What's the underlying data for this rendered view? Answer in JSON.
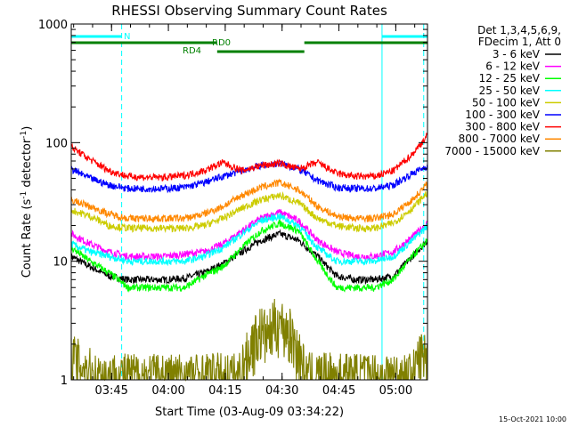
{
  "chart_data": {
    "type": "line",
    "title": "RHESSI Observing Summary Count Rates",
    "xlabel": "Start Time (03-Aug-09 03:34:22)",
    "ylabel_prefix": "Count Rate (s",
    "ylabel_sup1": "-1",
    "ylabel_mid": " detector",
    "ylabel_sup2": "-1",
    "ylabel_suffix": ")",
    "y_scale": "log",
    "ylim": [
      1,
      1000
    ],
    "xlim_minutes": [
      0,
      94
    ],
    "x_ticks": [
      {
        "label": "03:45",
        "minute": 10.63
      },
      {
        "label": "04:00",
        "minute": 25.63
      },
      {
        "label": "04:15",
        "minute": 40.63
      },
      {
        "label": "04:30",
        "minute": 55.63
      },
      {
        "label": "04:45",
        "minute": 70.63
      },
      {
        "label": "05:00",
        "minute": 85.63
      }
    ],
    "y_ticks": [
      {
        "label": "1",
        "value": 1
      },
      {
        "label": "10",
        "value": 10
      },
      {
        "label": "100",
        "value": 100
      },
      {
        "label": "1000",
        "value": 1000
      }
    ],
    "legend": {
      "placement": "right",
      "header1": "Det 1,3,4,5,6,9,",
      "header2": "FDecim 1, Att 0"
    },
    "series": [
      {
        "name": "3 - 6 keV",
        "color": "#000000",
        "x": [
          0,
          5,
          10,
          15,
          20,
          25,
          30,
          35,
          40,
          45,
          50,
          55,
          60,
          65,
          70,
          75,
          80,
          85,
          90,
          94
        ],
        "values": [
          11,
          9,
          7.5,
          7,
          7,
          7,
          7.2,
          8,
          9.5,
          12,
          15,
          17,
          15,
          11,
          7.5,
          7,
          7,
          7.5,
          11,
          15
        ]
      },
      {
        "name": "6 - 12 keV",
        "color": "#ff00ff",
        "x": [
          0,
          5,
          10,
          15,
          20,
          25,
          30,
          35,
          40,
          45,
          50,
          55,
          60,
          65,
          70,
          75,
          80,
          85,
          90,
          94
        ],
        "values": [
          17,
          14,
          12,
          11,
          11,
          11,
          11.5,
          12,
          14,
          18,
          23,
          26,
          22,
          15,
          12,
          11,
          11,
          12,
          16,
          21
        ]
      },
      {
        "name": "12 - 25 keV",
        "color": "#00ff00",
        "x": [
          0,
          5,
          10,
          15,
          20,
          25,
          30,
          35,
          40,
          45,
          50,
          55,
          60,
          65,
          70,
          75,
          80,
          85,
          90,
          94
        ],
        "values": [
          13,
          10,
          8,
          6,
          6,
          6,
          6,
          7.5,
          9,
          13,
          18,
          21,
          18,
          10,
          6,
          6,
          6,
          7,
          11,
          15
        ]
      },
      {
        "name": "25 - 50 keV",
        "color": "#00ffff",
        "x": [
          0,
          5,
          10,
          15,
          20,
          25,
          30,
          35,
          40,
          45,
          50,
          55,
          60,
          65,
          70,
          75,
          80,
          85,
          90,
          94
        ],
        "values": [
          14,
          12,
          11,
          10,
          10,
          10,
          10,
          11,
          13,
          17,
          22,
          24,
          20,
          13,
          10,
          10,
          10,
          11,
          15,
          20
        ]
      },
      {
        "name": "50 - 100 keV",
        "color": "#cccc00",
        "x": [
          0,
          5,
          10,
          15,
          20,
          25,
          30,
          35,
          40,
          45,
          50,
          55,
          60,
          65,
          70,
          75,
          80,
          85,
          90,
          94
        ],
        "values": [
          27,
          24,
          20,
          19,
          19,
          19,
          19,
          20,
          23,
          28,
          33,
          36,
          31,
          23,
          20,
          19,
          19,
          21,
          28,
          38
        ]
      },
      {
        "name": "100 - 300 keV",
        "color": "#0000ff",
        "x": [
          0,
          5,
          10,
          15,
          20,
          25,
          30,
          35,
          40,
          45,
          50,
          55,
          60,
          65,
          70,
          75,
          80,
          85,
          90,
          94
        ],
        "values": [
          60,
          50,
          44,
          41,
          41,
          41,
          42,
          46,
          52,
          58,
          64,
          67,
          60,
          48,
          42,
          41,
          41,
          44,
          55,
          64
        ]
      },
      {
        "name": "300 - 800 keV",
        "color": "#ff0000",
        "x": [
          0,
          5,
          10,
          15,
          20,
          25,
          30,
          35,
          40,
          45,
          50,
          55,
          60,
          65,
          70,
          75,
          80,
          85,
          90,
          94
        ],
        "values": [
          92,
          72,
          58,
          52,
          51,
          51,
          53,
          58,
          68,
          58,
          64,
          67,
          60,
          68,
          55,
          52,
          52,
          58,
          80,
          115
        ]
      },
      {
        "name": "800 - 7000 keV",
        "color": "#ff8800",
        "x": [
          0,
          5,
          10,
          15,
          20,
          25,
          30,
          35,
          40,
          45,
          50,
          55,
          60,
          65,
          70,
          75,
          80,
          85,
          90,
          94
        ],
        "values": [
          33,
          29,
          25,
          23,
          23,
          23,
          23,
          25,
          29,
          36,
          42,
          46,
          40,
          29,
          24,
          23,
          23,
          25,
          33,
          45
        ]
      },
      {
        "name": "7000 - 15000 keV",
        "color": "#808000",
        "x": [
          0,
          2,
          4,
          6,
          44,
          46,
          48,
          50,
          52,
          54,
          56,
          58,
          60,
          62,
          90,
          92,
          94
        ],
        "values": [
          1.5,
          1.3,
          1.2,
          1,
          1,
          1.4,
          2,
          2.5,
          2.2,
          3,
          2.7,
          2.3,
          1.6,
          1,
          1,
          1.5,
          1.5
        ]
      }
    ],
    "attenuator_bars": [
      {
        "label": "N",
        "color": "#00ffff",
        "segments": [
          [
            0,
            13.3
          ]
        ],
        "level": 1
      },
      {
        "label": "",
        "color": "#00ffff",
        "segments": [
          [
            82,
            94
          ]
        ],
        "level": 1
      }
    ],
    "decimation_bars": [
      {
        "label": "RD0",
        "color": "#008000",
        "segments": [
          [
            0,
            38.5
          ],
          [
            61.5,
            94
          ]
        ],
        "level": 2
      },
      {
        "label": "RD4",
        "color": "#008000",
        "segments": [
          [
            38.5,
            61.5
          ]
        ],
        "level": 3
      }
    ],
    "vlines": [
      {
        "minute": 0,
        "color": "#00ffff",
        "style": "solid"
      },
      {
        "minute": 13.3,
        "color": "#00ffff",
        "style": "dashed"
      },
      {
        "minute": 82,
        "color": "#00ffff",
        "style": "solid"
      },
      {
        "minute": 93,
        "color": "#00ffff",
        "style": "dashed"
      }
    ],
    "footer_date": "15-Oct-2021 10:00"
  }
}
